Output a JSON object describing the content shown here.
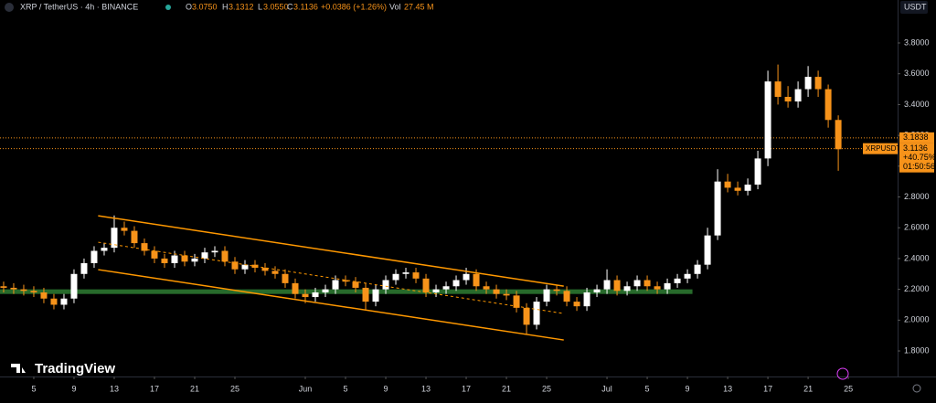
{
  "header": {
    "symbol": "XRP / TetherUS · 4h · BINANCE",
    "o_label": "O",
    "o": "3.0750",
    "h_label": "H",
    "h": "3.1312",
    "l_label": "L",
    "l": "3.0550",
    "c_label": "C",
    "c": "3.1136",
    "change": "+0.0386 (+1.26%)",
    "vol_label": "Vol",
    "vol": "27.45 M",
    "currency": "USDT",
    "logo": "TradingView"
  },
  "chart_data": {
    "type": "candlestick",
    "x": [
      2,
      3,
      4,
      5,
      6,
      7,
      8,
      9,
      10,
      11,
      12,
      13,
      14,
      15,
      16,
      17,
      18,
      19,
      20,
      21,
      22,
      23,
      24,
      25,
      26,
      27,
      28,
      29,
      30,
      31,
      32,
      33,
      34,
      35,
      36,
      37,
      38,
      39,
      40,
      41,
      42,
      43,
      44,
      45,
      46,
      47,
      48,
      49,
      50,
      51,
      52,
      53,
      54,
      55,
      56,
      57,
      58,
      59,
      60,
      61,
      62,
      63,
      64,
      65,
      66,
      67,
      68,
      69,
      70,
      71,
      72,
      73,
      74,
      75,
      76,
      77,
      78,
      79,
      80,
      81,
      82,
      83,
      84,
      85
    ],
    "open": [
      2.22,
      2.21,
      2.2,
      2.19,
      2.18,
      2.14,
      2.1,
      2.14,
      2.3,
      2.37,
      2.45,
      2.47,
      2.6,
      2.58,
      2.5,
      2.45,
      2.4,
      2.37,
      2.42,
      2.38,
      2.4,
      2.44,
      2.45,
      2.38,
      2.33,
      2.36,
      2.34,
      2.32,
      2.3,
      2.24,
      2.17,
      2.15,
      2.18,
      2.2,
      2.26,
      2.25,
      2.21,
      2.12,
      2.2,
      2.26,
      2.3,
      2.31,
      2.27,
      2.18,
      2.2,
      2.22,
      2.26,
      2.3,
      2.22,
      2.2,
      2.17,
      2.16,
      2.08,
      1.97,
      2.12,
      2.2,
      2.19,
      2.12,
      2.09,
      2.18,
      2.2,
      2.26,
      2.19,
      2.22,
      2.26,
      2.22,
      2.2,
      2.24,
      2.27,
      2.3,
      2.36,
      2.55,
      2.9,
      2.86,
      2.84,
      2.88,
      3.05,
      3.55,
      3.45,
      3.42,
      3.5,
      3.58,
      3.5,
      3.3
    ],
    "high": [
      2.25,
      2.24,
      2.23,
      2.22,
      2.21,
      2.17,
      2.17,
      2.33,
      2.4,
      2.48,
      2.5,
      2.68,
      2.64,
      2.61,
      2.53,
      2.48,
      2.43,
      2.45,
      2.45,
      2.43,
      2.47,
      2.48,
      2.48,
      2.41,
      2.39,
      2.39,
      2.37,
      2.35,
      2.33,
      2.27,
      2.2,
      2.21,
      2.23,
      2.29,
      2.29,
      2.28,
      2.24,
      2.23,
      2.29,
      2.33,
      2.34,
      2.34,
      2.3,
      2.23,
      2.25,
      2.29,
      2.34,
      2.33,
      2.25,
      2.23,
      2.2,
      2.19,
      2.11,
      2.15,
      2.23,
      2.23,
      2.22,
      2.15,
      2.21,
      2.23,
      2.33,
      2.29,
      2.25,
      2.29,
      2.29,
      2.25,
      2.27,
      2.3,
      2.33,
      2.39,
      2.6,
      2.98,
      2.95,
      2.9,
      2.92,
      3.1,
      3.62,
      3.66,
      3.52,
      3.55,
      3.65,
      3.62,
      3.53,
      3.33
    ],
    "low": [
      2.18,
      2.17,
      2.16,
      2.15,
      2.11,
      2.07,
      2.07,
      2.11,
      2.27,
      2.34,
      2.42,
      2.44,
      2.55,
      2.47,
      2.42,
      2.37,
      2.34,
      2.34,
      2.35,
      2.35,
      2.37,
      2.41,
      2.35,
      2.3,
      2.3,
      2.31,
      2.29,
      2.27,
      2.21,
      2.14,
      2.11,
      2.12,
      2.15,
      2.17,
      2.22,
      2.18,
      2.07,
      2.09,
      2.17,
      2.23,
      2.27,
      2.24,
      2.15,
      2.15,
      2.17,
      2.19,
      2.23,
      2.19,
      2.17,
      2.14,
      2.13,
      2.05,
      1.91,
      1.94,
      2.09,
      2.16,
      2.09,
      2.06,
      2.06,
      2.15,
      2.17,
      2.16,
      2.16,
      2.19,
      2.19,
      2.17,
      2.17,
      2.21,
      2.24,
      2.27,
      2.33,
      2.52,
      2.83,
      2.81,
      2.81,
      2.85,
      3.0,
      3.4,
      3.38,
      3.38,
      3.45,
      3.45,
      3.25,
      2.97
    ],
    "close": [
      2.21,
      2.2,
      2.19,
      2.18,
      2.14,
      2.1,
      2.14,
      2.3,
      2.37,
      2.45,
      2.47,
      2.6,
      2.58,
      2.5,
      2.45,
      2.4,
      2.37,
      2.42,
      2.38,
      2.4,
      2.44,
      2.45,
      2.38,
      2.33,
      2.36,
      2.34,
      2.32,
      2.3,
      2.24,
      2.17,
      2.15,
      2.18,
      2.2,
      2.26,
      2.25,
      2.21,
      2.12,
      2.2,
      2.26,
      2.3,
      2.31,
      2.27,
      2.18,
      2.2,
      2.22,
      2.26,
      2.3,
      2.22,
      2.2,
      2.17,
      2.16,
      2.08,
      1.97,
      2.12,
      2.2,
      2.19,
      2.12,
      2.09,
      2.18,
      2.2,
      2.26,
      2.19,
      2.22,
      2.26,
      2.22,
      2.2,
      2.24,
      2.27,
      2.3,
      2.36,
      2.55,
      2.9,
      2.86,
      2.84,
      2.88,
      3.05,
      3.55,
      3.45,
      3.42,
      3.5,
      3.58,
      3.5,
      3.3,
      3.11
    ],
    "up_color": "#ffffff",
    "down_color": "#f7931a",
    "xlim": [
      1.64,
      90.9
    ],
    "ylim": [
      1.634,
      4.079
    ],
    "xticks": [
      {
        "value": 5,
        "label": "5"
      },
      {
        "value": 9,
        "label": "9"
      },
      {
        "value": 13,
        "label": "13"
      },
      {
        "value": 17,
        "label": "17"
      },
      {
        "value": 21,
        "label": "21"
      },
      {
        "value": 25,
        "label": "25"
      },
      {
        "value": 32,
        "label": "Jun"
      },
      {
        "value": 36,
        "label": "5"
      },
      {
        "value": 40,
        "label": "9"
      },
      {
        "value": 44,
        "label": "13"
      },
      {
        "value": 48,
        "label": "17"
      },
      {
        "value": 52,
        "label": "21"
      },
      {
        "value": 56,
        "label": "25"
      },
      {
        "value": 62,
        "label": "Jul"
      },
      {
        "value": 66,
        "label": "5"
      },
      {
        "value": 70,
        "label": "9"
      },
      {
        "value": 74,
        "label": "13"
      },
      {
        "value": 78,
        "label": "17"
      },
      {
        "value": 82,
        "label": "21"
      },
      {
        "value": 86,
        "label": "25"
      }
    ],
    "yticks": [
      {
        "value": 1.8,
        "label": "1.8000"
      },
      {
        "value": 2.0,
        "label": "2.0000"
      },
      {
        "value": 2.2,
        "label": "2.2000"
      },
      {
        "value": 2.4,
        "label": "2.4000"
      },
      {
        "value": 2.6,
        "label": "2.6000"
      },
      {
        "value": 2.8,
        "label": "2.8000"
      },
      {
        "value": 3.0,
        "label": "3.0000"
      },
      {
        "value": 3.2,
        "label": "3.2000"
      },
      {
        "value": 3.4,
        "label": "3.4000"
      },
      {
        "value": 3.6,
        "label": "3.6000"
      },
      {
        "value": 3.8,
        "label": "3.8000"
      }
    ],
    "grid": false,
    "channel": {
      "color": "#ff9800",
      "x": [
        11.4,
        57.7
      ],
      "upper": [
        2.678,
        2.221
      ],
      "middle": [
        2.506,
        2.043
      ],
      "lower": [
        2.328,
        1.871
      ]
    },
    "support_zone": {
      "color": "#2e7d32",
      "low": 2.17,
      "high": 2.2,
      "x_end": 70.5
    },
    "price_line": {
      "value": 3.1838,
      "color": "#f7931a"
    },
    "last_price": {
      "name": "XRPUSDT",
      "value": 3.1136,
      "change": "+40.75%",
      "countdown": "01:50:56",
      "color": "#f7931a"
    }
  }
}
